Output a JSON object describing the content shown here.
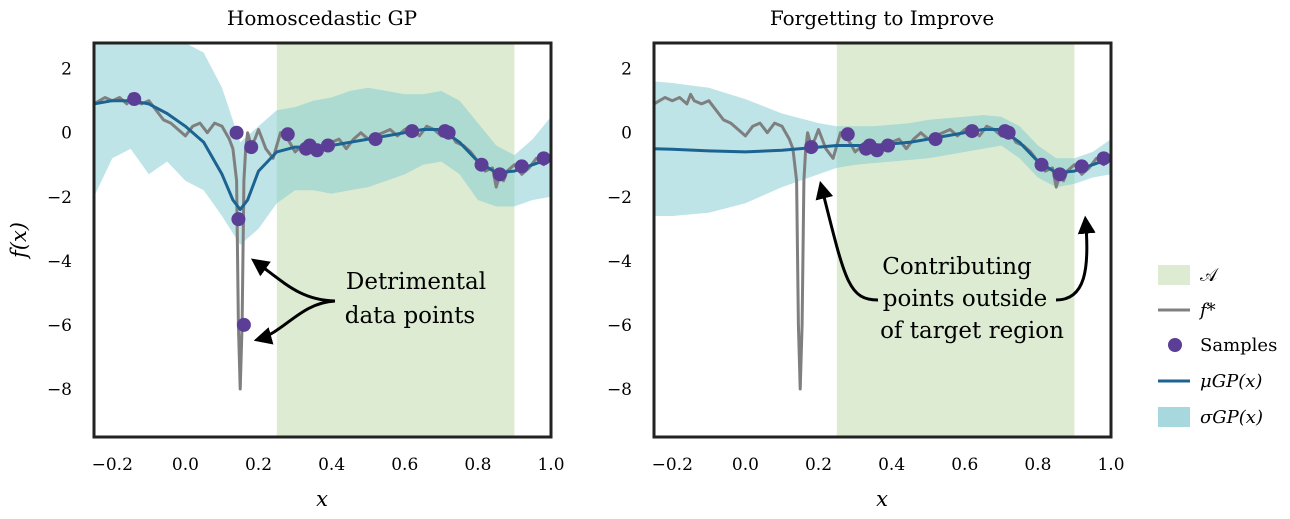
{
  "chart_data": [
    {
      "type": "line",
      "title": "Homoscedastic GP",
      "xlabel": "x",
      "ylabel": "f(x)",
      "xlim": [
        -0.25,
        1.0
      ],
      "ylim": [
        -9.5,
        2.8
      ],
      "xticks": [
        -0.2,
        0.0,
        0.2,
        0.4,
        0.6,
        0.8,
        1.0
      ],
      "xtick_labels": [
        "−0.2",
        "0.0",
        "0.2",
        "0.4",
        "0.6",
        "0.8",
        "1.0"
      ],
      "yticks": [
        2,
        0,
        -2,
        -4,
        -6,
        -8
      ],
      "ytick_labels": [
        "2",
        "0",
        "−2",
        "−4",
        "−6",
        "−8"
      ],
      "target_region": [
        0.25,
        0.9
      ],
      "f_star": {
        "x": [
          -0.25,
          -0.22,
          -0.2,
          -0.18,
          -0.16,
          -0.15,
          -0.14,
          -0.12,
          -0.1,
          -0.08,
          -0.06,
          -0.04,
          -0.02,
          0.0,
          0.02,
          0.04,
          0.06,
          0.08,
          0.1,
          0.12,
          0.13,
          0.14,
          0.145,
          0.15,
          0.155,
          0.16,
          0.165,
          0.17,
          0.18,
          0.19,
          0.2,
          0.22,
          0.24,
          0.26,
          0.28,
          0.3,
          0.32,
          0.34,
          0.36,
          0.38,
          0.4,
          0.42,
          0.44,
          0.46,
          0.48,
          0.5,
          0.52,
          0.54,
          0.56,
          0.58,
          0.6,
          0.62,
          0.64,
          0.66,
          0.68,
          0.7,
          0.72,
          0.74,
          0.76,
          0.78,
          0.8,
          0.82,
          0.84,
          0.85,
          0.86,
          0.87,
          0.88,
          0.9,
          0.92,
          0.94,
          0.96,
          0.98,
          1.0
        ],
        "y": [
          0.9,
          1.1,
          1.0,
          1.1,
          0.9,
          1.2,
          1.0,
          0.9,
          1.0,
          0.7,
          0.4,
          0.3,
          0.1,
          -0.1,
          0.2,
          0.3,
          0.0,
          0.3,
          0.2,
          -0.2,
          -0.5,
          -1.5,
          -6.0,
          -8.0,
          -6.0,
          -1.5,
          -0.5,
          0.0,
          -0.4,
          -0.2,
          0.1,
          -0.5,
          -0.8,
          0.0,
          -0.2,
          -0.6,
          -0.4,
          -0.3,
          -0.7,
          -0.5,
          -0.3,
          -0.2,
          -0.5,
          -0.2,
          0.0,
          -0.2,
          -0.1,
          0.0,
          0.1,
          -0.1,
          0.1,
          0.2,
          -0.1,
          0.2,
          0.1,
          -0.1,
          0.1,
          -0.3,
          -0.4,
          -0.6,
          -0.9,
          -1.2,
          -1.1,
          -1.7,
          -1.3,
          -1.5,
          -1.2,
          -1.0,
          -1.3,
          -1.1,
          -0.8,
          -1.0,
          -0.8
        ]
      },
      "samples": {
        "x": [
          -0.14,
          0.14,
          0.145,
          0.16,
          0.18,
          0.28,
          0.33,
          0.34,
          0.36,
          0.39,
          0.52,
          0.62,
          0.71,
          0.72,
          0.81,
          0.86,
          0.92,
          0.98
        ],
        "y": [
          1.05,
          0.0,
          -2.7,
          -6.0,
          -0.45,
          -0.05,
          -0.5,
          -0.4,
          -0.55,
          -0.4,
          -0.2,
          0.05,
          0.05,
          0.0,
          -1.0,
          -1.3,
          -1.05,
          -0.8
        ]
      },
      "mu_gp": {
        "x": [
          -0.25,
          -0.2,
          -0.15,
          -0.1,
          -0.05,
          0.0,
          0.05,
          0.1,
          0.13,
          0.15,
          0.17,
          0.2,
          0.25,
          0.3,
          0.35,
          0.4,
          0.45,
          0.5,
          0.55,
          0.6,
          0.65,
          0.7,
          0.75,
          0.8,
          0.85,
          0.9,
          0.95,
          1.0
        ],
        "y": [
          0.9,
          1.0,
          1.0,
          0.9,
          0.6,
          0.2,
          -0.3,
          -1.3,
          -2.1,
          -2.4,
          -2.1,
          -1.2,
          -0.6,
          -0.45,
          -0.45,
          -0.4,
          -0.3,
          -0.2,
          -0.1,
          0.0,
          0.1,
          0.1,
          -0.3,
          -0.9,
          -1.25,
          -1.2,
          -1.0,
          -0.8
        ]
      },
      "sigma_gp": {
        "x": [
          -0.25,
          -0.2,
          -0.15,
          -0.1,
          -0.05,
          0.0,
          0.05,
          0.1,
          0.15,
          0.2,
          0.25,
          0.3,
          0.35,
          0.4,
          0.45,
          0.5,
          0.55,
          0.6,
          0.65,
          0.7,
          0.75,
          0.8,
          0.85,
          0.9,
          0.95,
          1.0
        ],
        "upper": [
          2.8,
          2.8,
          2.8,
          2.8,
          2.8,
          2.8,
          2.5,
          1.4,
          -0.3,
          0.2,
          0.7,
          0.8,
          1.0,
          1.1,
          1.3,
          1.4,
          1.3,
          1.2,
          1.2,
          1.3,
          1.0,
          0.3,
          -0.4,
          -0.7,
          -0.2,
          0.5
        ],
        "lower": [
          -2.0,
          -0.8,
          -0.5,
          -1.3,
          -0.9,
          -1.5,
          -1.8,
          -2.6,
          -3.5,
          -3.0,
          -2.2,
          -1.8,
          -1.8,
          -1.9,
          -1.8,
          -1.7,
          -1.5,
          -1.3,
          -1.0,
          -0.9,
          -1.3,
          -2.1,
          -2.3,
          -2.3,
          -2.1,
          -2.0
        ]
      },
      "annotation": {
        "lines": [
          "Detrimental",
          "data points"
        ],
        "arrow_targets": [
          [
            0.16,
            -3.9
          ],
          [
            0.18,
            -6.4
          ]
        ]
      }
    },
    {
      "type": "line",
      "title": "Forgetting to Improve",
      "xlabel": "x",
      "xlim": [
        -0.25,
        1.0
      ],
      "ylim": [
        -9.5,
        2.8
      ],
      "xticks": [
        -0.2,
        0.0,
        0.2,
        0.4,
        0.6,
        0.8,
        1.0
      ],
      "xtick_labels": [
        "−0.2",
        "0.0",
        "0.2",
        "0.4",
        "0.6",
        "0.8",
        "1.0"
      ],
      "yticks": [
        2,
        0,
        -2,
        -4,
        -6,
        -8
      ],
      "ytick_labels": [
        "2",
        "0",
        "−2",
        "−4",
        "−6",
        "−8"
      ],
      "target_region": [
        0.25,
        0.9
      ],
      "f_star": {
        "x": [
          -0.25,
          -0.22,
          -0.2,
          -0.18,
          -0.16,
          -0.15,
          -0.14,
          -0.12,
          -0.1,
          -0.08,
          -0.06,
          -0.04,
          -0.02,
          0.0,
          0.02,
          0.04,
          0.06,
          0.08,
          0.1,
          0.12,
          0.13,
          0.14,
          0.145,
          0.15,
          0.155,
          0.16,
          0.165,
          0.17,
          0.18,
          0.19,
          0.2,
          0.22,
          0.24,
          0.26,
          0.28,
          0.3,
          0.32,
          0.34,
          0.36,
          0.38,
          0.4,
          0.42,
          0.44,
          0.46,
          0.48,
          0.5,
          0.52,
          0.54,
          0.56,
          0.58,
          0.6,
          0.62,
          0.64,
          0.66,
          0.68,
          0.7,
          0.72,
          0.74,
          0.76,
          0.78,
          0.8,
          0.82,
          0.84,
          0.85,
          0.86,
          0.87,
          0.88,
          0.9,
          0.92,
          0.94,
          0.96,
          0.98,
          1.0
        ],
        "y": [
          0.9,
          1.1,
          1.0,
          1.1,
          0.9,
          1.2,
          1.0,
          0.9,
          1.0,
          0.7,
          0.4,
          0.3,
          0.1,
          -0.1,
          0.2,
          0.3,
          0.0,
          0.3,
          0.2,
          -0.2,
          -0.5,
          -1.5,
          -6.0,
          -8.0,
          -6.0,
          -1.5,
          -0.5,
          0.0,
          -0.4,
          -0.2,
          0.1,
          -0.5,
          -0.8,
          0.0,
          -0.2,
          -0.6,
          -0.4,
          -0.3,
          -0.7,
          -0.5,
          -0.3,
          -0.2,
          -0.5,
          -0.2,
          0.0,
          -0.2,
          -0.1,
          0.0,
          0.1,
          -0.1,
          0.1,
          0.2,
          -0.1,
          0.2,
          0.1,
          -0.1,
          0.1,
          -0.3,
          -0.4,
          -0.6,
          -0.9,
          -1.2,
          -1.1,
          -1.7,
          -1.3,
          -1.5,
          -1.2,
          -1.0,
          -1.3,
          -1.1,
          -0.8,
          -1.0,
          -0.8
        ]
      },
      "samples": {
        "x": [
          0.18,
          0.28,
          0.33,
          0.34,
          0.36,
          0.39,
          0.52,
          0.62,
          0.71,
          0.72,
          0.81,
          0.86,
          0.92,
          0.98
        ],
        "y": [
          -0.45,
          -0.05,
          -0.5,
          -0.4,
          -0.55,
          -0.4,
          -0.2,
          0.05,
          0.05,
          0.0,
          -1.0,
          -1.3,
          -1.05,
          -0.8
        ]
      },
      "mu_gp": {
        "x": [
          -0.25,
          -0.2,
          -0.1,
          0.0,
          0.1,
          0.2,
          0.25,
          0.3,
          0.35,
          0.4,
          0.45,
          0.5,
          0.55,
          0.6,
          0.65,
          0.7,
          0.75,
          0.8,
          0.85,
          0.9,
          0.95,
          1.0
        ],
        "y": [
          -0.5,
          -0.52,
          -0.57,
          -0.6,
          -0.55,
          -0.45,
          -0.4,
          -0.4,
          -0.4,
          -0.35,
          -0.3,
          -0.2,
          -0.1,
          0.0,
          0.1,
          0.1,
          -0.3,
          -0.9,
          -1.25,
          -1.2,
          -1.0,
          -0.8
        ]
      },
      "sigma_gp": {
        "x": [
          -0.25,
          -0.2,
          -0.1,
          0.0,
          0.1,
          0.2,
          0.25,
          0.3,
          0.35,
          0.4,
          0.45,
          0.5,
          0.55,
          0.6,
          0.65,
          0.7,
          0.75,
          0.8,
          0.85,
          0.9,
          0.95,
          1.0
        ],
        "upper": [
          1.6,
          1.55,
          1.4,
          1.05,
          0.6,
          0.3,
          0.2,
          0.2,
          0.2,
          0.25,
          0.3,
          0.4,
          0.45,
          0.5,
          0.55,
          0.5,
          0.2,
          -0.4,
          -0.8,
          -0.8,
          -0.6,
          -0.2
        ],
        "lower": [
          -2.6,
          -2.6,
          -2.5,
          -2.2,
          -1.7,
          -1.3,
          -1.1,
          -1.0,
          -0.95,
          -0.9,
          -0.85,
          -0.8,
          -0.7,
          -0.6,
          -0.5,
          -0.4,
          -0.8,
          -1.4,
          -1.7,
          -1.6,
          -1.4,
          -1.3
        ]
      },
      "annotation": {
        "lines": [
          "Contributing",
          "points outside",
          "of target region"
        ],
        "arrow_targets": [
          [
            0.19,
            -1.3
          ],
          [
            0.93,
            -2.7
          ]
        ]
      }
    }
  ],
  "legend": {
    "placement": "right",
    "items": [
      {
        "key": "target",
        "label": "𝒜",
        "color": "#dcebd2"
      },
      {
        "key": "fstar",
        "label": "f*",
        "color": "#808080"
      },
      {
        "key": "samples",
        "label": "Samples",
        "color": "#5b3e96"
      },
      {
        "key": "mu",
        "label": "μGP(x)",
        "color": "#1c6391"
      },
      {
        "key": "sigma",
        "label": "σGP(x)",
        "color": "#a6d8de"
      }
    ]
  },
  "colors": {
    "target_region": "#dcebd2",
    "f_star": "#7f7f7f",
    "samples": "#5b3e96",
    "mu_gp": "#1c6391",
    "sigma_gp": "#7ec9d0"
  }
}
